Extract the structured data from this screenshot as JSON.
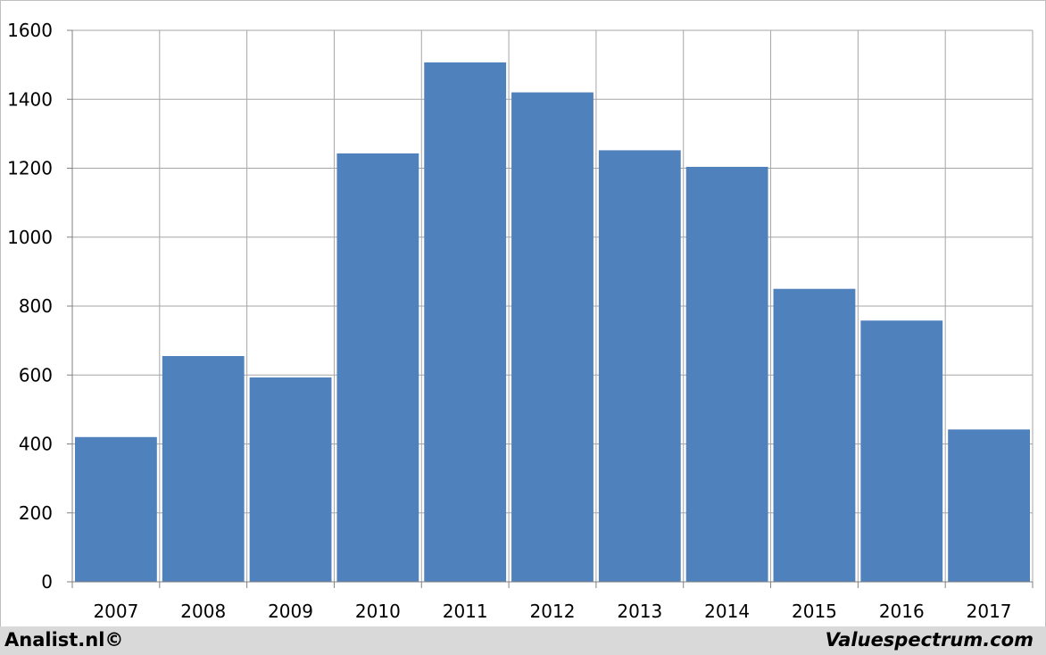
{
  "chart_data": {
    "type": "bar",
    "title": "",
    "xlabel": "",
    "ylabel": "",
    "categories": [
      "2007",
      "2008",
      "2009",
      "2010",
      "2011",
      "2012",
      "2013",
      "2014",
      "2015",
      "2016",
      "2017"
    ],
    "values": [
      420,
      655,
      593,
      1243,
      1507,
      1420,
      1252,
      1204,
      850,
      758,
      442
    ],
    "ylim": [
      0,
      1600
    ],
    "yticks": [
      "0",
      "200",
      "400",
      "600",
      "800",
      "1000",
      "1200",
      "1400",
      "1600"
    ],
    "grid": true,
    "legend": "none",
    "bar_color": "#4f81bd",
    "grid_color": "#a6a6a6"
  },
  "footer": {
    "left_text": "Analist.nl©",
    "right_text": "Valuespectrum.com"
  }
}
